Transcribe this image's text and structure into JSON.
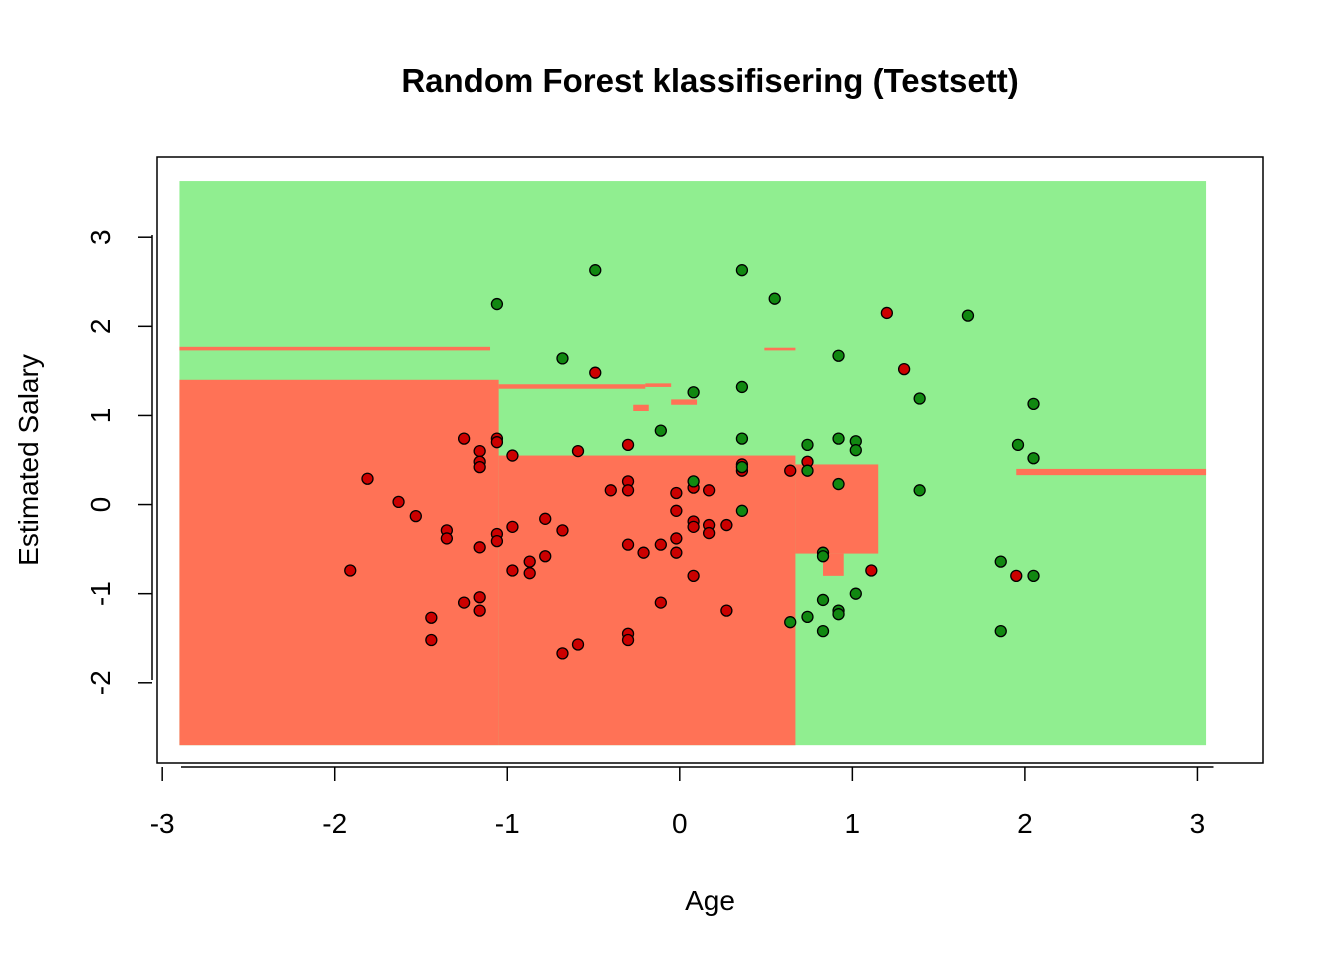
{
  "chart_data": {
    "type": "scatter",
    "title": "Random Forest klassifisering (Testsett)",
    "xlabel": "Age",
    "ylabel": "Estimated Salary",
    "xlim": [
      -3.03,
      3.38
    ],
    "ylim": [
      -2.9,
      3.9
    ],
    "x_ticks": [
      -3,
      -2,
      -1,
      0,
      1,
      2,
      3
    ],
    "y_ticks": [
      -2,
      -1,
      0,
      1,
      2,
      3
    ],
    "grid": false,
    "legend": "none",
    "colors": {
      "region_0": "#FF7256",
      "region_1": "#90EE90",
      "point_0": "#CC0000",
      "point_1": "#118811",
      "point_outline": "#000000",
      "box": "#000000"
    },
    "decision_regions": {
      "class_1": [
        {
          "x": [
            -2.9,
            3.05
          ],
          "y": [
            -2.7,
            3.63
          ]
        }
      ],
      "class_0": [
        {
          "x": [
            -2.9,
            -1.05
          ],
          "y": [
            -2.7,
            1.4
          ]
        },
        {
          "x": [
            -1.05,
            0.67
          ],
          "y": [
            -2.7,
            0.55
          ]
        },
        {
          "x": [
            0.67,
            1.15
          ],
          "y": [
            -0.55,
            0.45
          ]
        },
        {
          "x": [
            -1.05,
            -0.2
          ],
          "y": [
            1.3,
            1.35
          ]
        },
        {
          "x": [
            -0.2,
            -0.05
          ],
          "y": [
            1.32,
            1.36
          ]
        },
        {
          "x": [
            -0.27,
            -0.18
          ],
          "y": [
            1.05,
            1.12
          ]
        },
        {
          "x": [
            -0.05,
            0.1
          ],
          "y": [
            1.12,
            1.18
          ]
        },
        {
          "x": [
            -2.9,
            -1.1
          ],
          "y": [
            1.73,
            1.77
          ]
        },
        {
          "x": [
            0.49,
            0.67
          ],
          "y": [
            1.73,
            1.76
          ]
        },
        {
          "x": [
            1.95,
            3.05
          ],
          "y": [
            0.33,
            0.4
          ]
        },
        {
          "x": [
            0.83,
            0.95
          ],
          "y": [
            -0.8,
            -0.55
          ]
        }
      ]
    },
    "series": [
      {
        "class": 0,
        "points": [
          [
            -1.91,
            -0.74
          ],
          [
            -1.81,
            0.29
          ],
          [
            -1.63,
            0.03
          ],
          [
            -1.53,
            -0.13
          ],
          [
            -1.44,
            -1.27
          ],
          [
            -1.44,
            -1.52
          ],
          [
            -1.35,
            -0.29
          ],
          [
            -1.35,
            -0.38
          ],
          [
            -1.25,
            0.74
          ],
          [
            -1.25,
            -1.1
          ],
          [
            -1.16,
            0.6
          ],
          [
            -1.16,
            0.48
          ],
          [
            -1.16,
            0.42
          ],
          [
            -1.16,
            -0.48
          ],
          [
            -1.16,
            -1.04
          ],
          [
            -1.16,
            -1.19
          ],
          [
            -1.06,
            0.74
          ],
          [
            -1.06,
            0.7
          ],
          [
            -1.06,
            -0.33
          ],
          [
            -1.06,
            -0.41
          ],
          [
            -0.97,
            0.55
          ],
          [
            -0.97,
            -0.25
          ],
          [
            -0.97,
            -0.74
          ],
          [
            -0.87,
            -0.64
          ],
          [
            -0.87,
            -0.77
          ],
          [
            -0.78,
            -0.16
          ],
          [
            -0.78,
            -0.58
          ],
          [
            -0.68,
            -0.29
          ],
          [
            -0.68,
            -1.67
          ],
          [
            -0.59,
            0.6
          ],
          [
            -0.59,
            -1.57
          ],
          [
            -0.49,
            1.48
          ],
          [
            -0.4,
            0.16
          ],
          [
            -0.3,
            0.67
          ],
          [
            -0.3,
            0.26
          ],
          [
            -0.3,
            0.16
          ],
          [
            -0.3,
            -0.45
          ],
          [
            -0.3,
            -1.45
          ],
          [
            -0.3,
            -1.52
          ],
          [
            -0.21,
            -0.54
          ],
          [
            -0.11,
            -0.45
          ],
          [
            -0.11,
            -1.1
          ],
          [
            -0.02,
            0.13
          ],
          [
            -0.02,
            -0.07
          ],
          [
            -0.02,
            -0.38
          ],
          [
            -0.02,
            -0.54
          ],
          [
            0.08,
            0.19
          ],
          [
            0.08,
            -0.19
          ],
          [
            0.08,
            -0.25
          ],
          [
            0.08,
            -0.8
          ],
          [
            0.17,
            0.16
          ],
          [
            0.17,
            -0.23
          ],
          [
            0.17,
            -0.32
          ],
          [
            0.27,
            -0.23
          ],
          [
            0.27,
            -1.19
          ],
          [
            0.36,
            0.45
          ],
          [
            0.36,
            0.38
          ],
          [
            0.64,
            0.38
          ],
          [
            0.74,
            0.48
          ],
          [
            1.11,
            -0.74
          ],
          [
            1.2,
            2.15
          ],
          [
            1.3,
            1.52
          ],
          [
            1.95,
            -0.8
          ]
        ]
      },
      {
        "class": 1,
        "points": [
          [
            -1.06,
            2.25
          ],
          [
            -0.68,
            1.64
          ],
          [
            -0.49,
            2.63
          ],
          [
            -0.11,
            0.83
          ],
          [
            0.08,
            1.26
          ],
          [
            0.08,
            0.26
          ],
          [
            0.36,
            2.63
          ],
          [
            0.36,
            1.32
          ],
          [
            0.36,
            0.74
          ],
          [
            0.36,
            0.42
          ],
          [
            0.36,
            -0.07
          ],
          [
            0.55,
            2.31
          ],
          [
            0.64,
            -1.32
          ],
          [
            0.74,
            0.67
          ],
          [
            0.74,
            0.38
          ],
          [
            0.74,
            -1.26
          ],
          [
            0.83,
            -0.54
          ],
          [
            0.83,
            -0.58
          ],
          [
            0.83,
            -1.07
          ],
          [
            0.83,
            -1.42
          ],
          [
            0.92,
            1.67
          ],
          [
            0.92,
            0.74
          ],
          [
            0.92,
            0.23
          ],
          [
            0.92,
            -1.19
          ],
          [
            0.92,
            -1.23
          ],
          [
            1.02,
            0.71
          ],
          [
            1.02,
            0.61
          ],
          [
            1.02,
            -1.0
          ],
          [
            1.39,
            1.19
          ],
          [
            1.39,
            0.16
          ],
          [
            1.67,
            2.12
          ],
          [
            1.86,
            -0.64
          ],
          [
            1.86,
            -1.42
          ],
          [
            1.96,
            0.67
          ],
          [
            2.05,
            1.13
          ],
          [
            2.05,
            0.52
          ],
          [
            2.05,
            -0.8
          ]
        ]
      }
    ]
  }
}
